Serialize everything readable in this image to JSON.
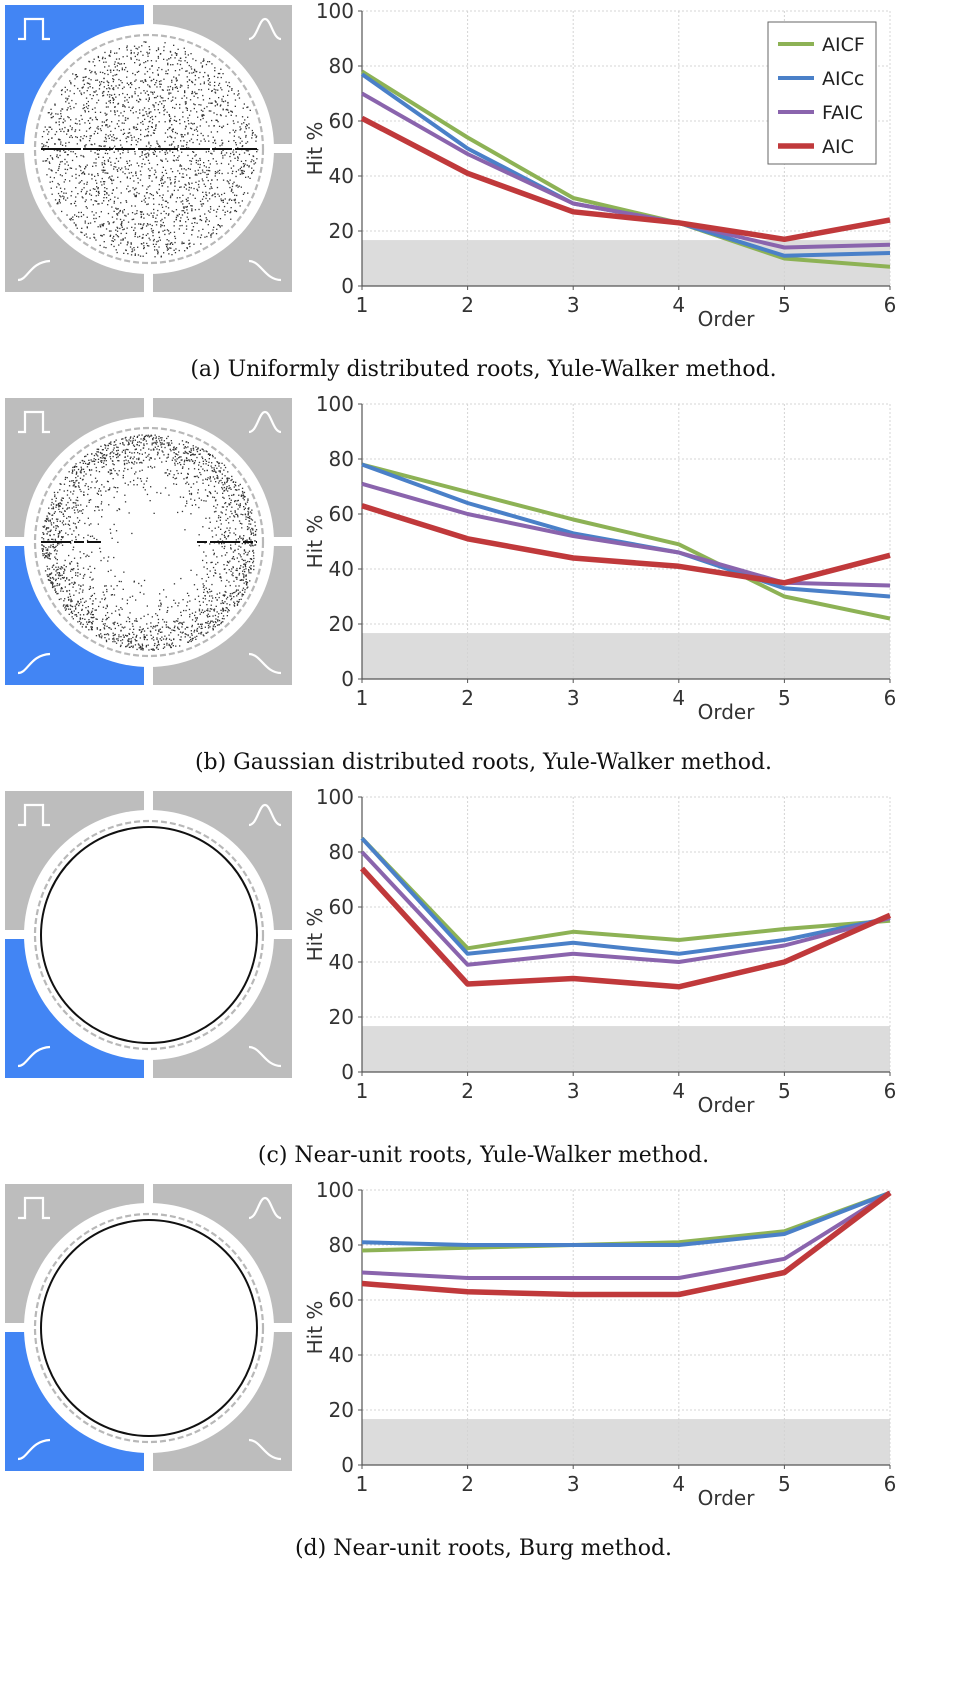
{
  "colors": {
    "AICF": "#8DB255",
    "AICc": "#4A80C8",
    "FAIC": "#8A64AD",
    "AIC": "#C0393B",
    "quadrant_active": "#4285F4",
    "quadrant_inactive": "#BDBDBD",
    "chance_band": "#DCDCDC"
  },
  "chart_data": [
    {
      "type": "line",
      "caption": "(a) Uniformly distributed roots, Yule-Walker method.",
      "xlabel": "Order",
      "ylabel": "Hit %",
      "x": [
        1,
        2,
        3,
        4,
        5,
        6
      ],
      "xlim": [
        1,
        6
      ],
      "ylim": [
        0,
        100
      ],
      "yticks": [
        0,
        20,
        40,
        60,
        80,
        100
      ],
      "chance_band": [
        0,
        16.7
      ],
      "legend": "top-right",
      "grid": true,
      "quadrant_highlight": "top-left",
      "quadrant_icons": [
        "rect-pulse-icon",
        "bell-curve-icon",
        "s-curve-icon",
        "half-bell-icon"
      ],
      "root_distribution": "uniform",
      "series": [
        {
          "name": "AICF",
          "values": [
            78,
            54,
            32,
            23,
            10,
            7
          ]
        },
        {
          "name": "AICc",
          "values": [
            77,
            50,
            30,
            23,
            11,
            12
          ]
        },
        {
          "name": "FAIC",
          "values": [
            70,
            48,
            30,
            23,
            14,
            15
          ]
        },
        {
          "name": "AIC",
          "values": [
            61,
            41,
            27,
            23,
            17,
            24
          ]
        }
      ]
    },
    {
      "type": "line",
      "caption": "(b) Gaussian distributed roots, Yule-Walker method.",
      "xlabel": "Order",
      "ylabel": "Hit %",
      "x": [
        1,
        2,
        3,
        4,
        5,
        6
      ],
      "xlim": [
        1,
        6
      ],
      "ylim": [
        0,
        100
      ],
      "yticks": [
        0,
        20,
        40,
        60,
        80,
        100
      ],
      "chance_band": [
        0,
        16.7
      ],
      "legend": "none",
      "grid": true,
      "quadrant_highlight": "bottom-left",
      "quadrant_icons": [
        "rect-pulse-icon",
        "bell-curve-icon",
        "s-curve-icon",
        "half-bell-icon"
      ],
      "root_distribution": "gaussian",
      "series": [
        {
          "name": "AICF",
          "values": [
            78,
            68,
            58,
            49,
            30,
            22
          ]
        },
        {
          "name": "AICc",
          "values": [
            78,
            64,
            53,
            46,
            33,
            30
          ]
        },
        {
          "name": "FAIC",
          "values": [
            71,
            60,
            52,
            46,
            35,
            34
          ]
        },
        {
          "name": "AIC",
          "values": [
            63,
            51,
            44,
            41,
            35,
            45
          ]
        }
      ]
    },
    {
      "type": "line",
      "caption": "(c) Near-unit roots, Yule-Walker method.",
      "xlabel": "Order",
      "ylabel": "Hit %",
      "x": [
        1,
        2,
        3,
        4,
        5,
        6
      ],
      "xlim": [
        1,
        6
      ],
      "ylim": [
        0,
        100
      ],
      "yticks": [
        0,
        20,
        40,
        60,
        80,
        100
      ],
      "chance_band": [
        0,
        16.7
      ],
      "legend": "none",
      "grid": true,
      "quadrant_highlight": "bottom-left",
      "quadrant_icons": [
        "rect-pulse-icon",
        "bell-curve-icon",
        "s-curve-icon",
        "half-bell-icon"
      ],
      "root_distribution": "near-unit",
      "series": [
        {
          "name": "AICF",
          "values": [
            85,
            45,
            51,
            48,
            52,
            55
          ]
        },
        {
          "name": "AICc",
          "values": [
            85,
            43,
            47,
            43,
            48,
            56
          ]
        },
        {
          "name": "FAIC",
          "values": [
            80,
            39,
            43,
            40,
            46,
            56
          ]
        },
        {
          "name": "AIC",
          "values": [
            74,
            32,
            34,
            31,
            40,
            57
          ]
        }
      ]
    },
    {
      "type": "line",
      "caption": "(d) Near-unit roots, Burg method.",
      "xlabel": "Order",
      "ylabel": "Hit %",
      "x": [
        1,
        2,
        3,
        4,
        5,
        6
      ],
      "xlim": [
        1,
        6
      ],
      "ylim": [
        0,
        100
      ],
      "yticks": [
        0,
        20,
        40,
        60,
        80,
        100
      ],
      "chance_band": [
        0,
        16.7
      ],
      "legend": "none",
      "grid": true,
      "quadrant_highlight": "bottom-left",
      "quadrant_icons": [
        "rect-pulse-icon",
        "bell-curve-icon",
        "s-curve-icon",
        "half-bell-icon"
      ],
      "root_distribution": "near-unit",
      "series": [
        {
          "name": "AICF",
          "values": [
            78,
            79,
            80,
            81,
            85,
            99
          ]
        },
        {
          "name": "AICc",
          "values": [
            81,
            80,
            80,
            80,
            84,
            99
          ]
        },
        {
          "name": "FAIC",
          "values": [
            70,
            68,
            68,
            68,
            75,
            99
          ]
        },
        {
          "name": "AIC",
          "values": [
            66,
            63,
            62,
            62,
            70,
            99
          ]
        }
      ]
    }
  ]
}
